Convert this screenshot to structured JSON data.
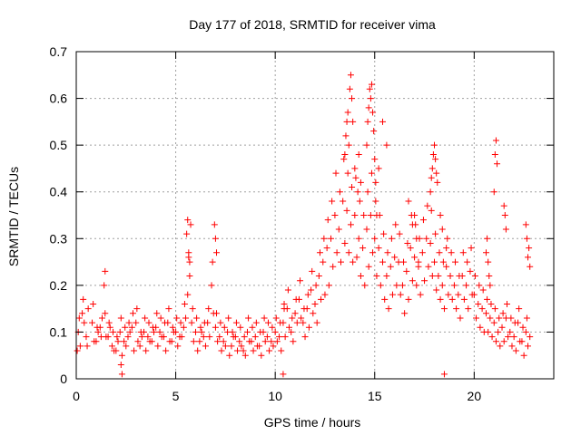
{
  "chart_data": {
    "type": "scatter",
    "title": "Day 177 of 2018, SRMTID for receiver vima",
    "xlabel": "GPS time / hours",
    "ylabel": "SRMTID / TECUs",
    "xlim": [
      0,
      24
    ],
    "ylim": [
      0,
      0.7
    ],
    "xticks": [
      0,
      5,
      10,
      15,
      20
    ],
    "xtick_labels": [
      "0",
      "5",
      "10",
      "15",
      "20"
    ],
    "yticks": [
      0,
      0.1,
      0.2,
      0.3,
      0.4,
      0.5,
      0.6,
      0.7
    ],
    "ytick_labels": [
      "0",
      "0.1",
      "0.2",
      "0.3",
      "0.4",
      "0.5",
      "0.6",
      "0.7"
    ],
    "grid": true,
    "marker": "+",
    "series": [
      {
        "name": "SRMTID",
        "color": "#ff0000",
        "x": [
          0.1,
          0.3,
          0.5,
          0.8,
          1.0,
          1.2,
          1.4,
          1.6,
          1.8,
          2.0,
          2.2,
          2.4,
          2.6,
          2.8,
          3.0,
          3.2,
          3.4,
          3.6,
          3.8,
          4.0,
          4.2,
          4.4,
          4.6,
          4.8,
          5.0,
          5.2,
          5.4,
          5.6,
          5.8,
          6.0,
          6.2,
          6.4,
          6.6,
          6.8,
          7.0,
          7.2,
          7.4,
          7.6,
          7.8,
          8.0,
          8.2,
          8.4,
          8.6,
          8.8,
          9.0,
          9.2,
          9.4,
          9.6,
          9.8,
          10.0,
          10.2,
          10.4,
          10.6,
          10.8,
          11.0,
          11.2,
          11.4,
          11.6,
          11.8,
          12.0,
          12.2,
          12.4,
          12.6,
          12.8,
          13.0,
          13.2,
          13.4,
          13.6,
          13.8,
          14.0,
          14.2,
          14.4,
          14.6,
          14.8,
          15.0,
          15.2,
          15.4,
          15.6,
          15.8,
          16.0,
          16.2,
          16.4,
          16.6,
          16.8,
          17.0,
          17.2,
          17.4,
          17.6,
          17.8,
          18.0,
          18.2,
          18.4,
          18.6,
          18.8,
          19.0,
          19.2,
          19.4,
          19.6,
          19.8,
          20.0,
          20.2,
          20.4,
          20.6,
          20.8,
          21.0,
          21.2,
          21.4,
          21.6,
          21.8,
          22.0,
          22.2,
          22.4,
          22.6,
          22.8,
          0.2,
          0.4,
          0.6,
          0.9,
          1.1,
          1.3,
          1.5,
          1.7,
          1.9,
          2.1,
          2.3,
          2.5,
          2.7,
          2.9,
          3.1,
          3.3,
          3.5,
          3.7,
          3.9,
          4.1,
          4.3,
          4.5,
          4.7,
          4.9,
          5.1,
          5.3,
          5.5,
          5.7,
          5.9,
          6.1,
          6.3,
          6.5,
          6.7,
          6.9,
          7.1,
          7.3,
          7.5,
          7.7,
          7.9,
          8.1,
          8.3,
          8.5,
          8.7,
          8.9,
          9.1,
          9.3,
          9.5,
          9.7,
          9.9,
          10.1,
          10.3,
          10.5,
          10.7,
          10.9,
          11.1,
          11.3,
          11.5,
          11.7,
          11.9,
          12.1,
          12.3,
          12.5,
          12.7,
          12.9,
          13.1,
          13.3,
          13.5,
          13.7,
          13.9,
          14.1,
          14.3,
          14.5,
          14.7,
          14.9,
          15.1,
          15.3,
          15.5,
          15.7,
          15.9,
          16.1,
          16.3,
          16.5,
          16.7,
          16.9,
          17.1,
          17.3,
          17.5,
          17.7,
          17.9,
          18.1,
          18.3,
          18.5,
          18.7,
          18.9,
          19.1,
          19.3,
          19.5,
          19.7,
          19.9,
          20.1,
          20.3,
          20.5,
          20.7,
          20.9,
          21.1,
          21.3,
          21.5,
          21.7,
          21.9,
          22.1,
          22.3,
          22.5,
          22.7,
          0.15,
          0.35,
          0.55,
          0.85,
          1.05,
          1.25,
          1.45,
          1.65,
          1.85,
          2.05,
          2.25,
          2.45,
          2.65,
          2.85,
          3.05,
          3.25,
          3.45,
          3.65,
          3.85,
          4.05,
          4.25,
          4.45,
          4.65,
          4.85,
          5.05,
          5.25,
          5.45,
          5.65,
          5.85,
          6.05,
          6.25,
          6.45,
          6.65,
          6.85,
          7.05,
          7.25,
          7.45,
          7.65,
          7.85,
          8.05,
          8.25,
          8.45,
          8.65,
          8.85,
          9.05,
          9.25,
          9.45,
          9.65,
          9.85,
          10.05,
          10.25,
          10.45,
          10.65,
          10.85,
          11.05,
          11.25,
          11.45,
          11.65,
          11.85,
          12.05,
          12.25,
          12.45,
          12.65,
          12.85,
          13.05,
          13.25,
          13.45,
          13.65,
          13.85,
          14.05,
          14.25,
          14.45,
          14.65,
          14.85,
          15.05,
          15.25,
          15.45,
          15.65,
          15.85,
          16.05,
          16.25,
          16.45,
          16.65,
          16.85,
          17.05,
          17.25,
          17.45,
          17.65,
          17.85,
          18.05,
          18.25,
          18.45,
          18.65,
          18.85,
          19.05,
          19.25,
          19.45,
          19.65,
          19.85,
          20.05,
          20.25,
          20.45,
          20.65,
          20.85,
          21.05,
          21.25,
          21.45,
          21.65,
          21.85,
          22.05,
          22.25,
          22.45,
          22.65,
          0.05,
          1.45,
          2.25,
          2.3,
          5.55,
          5.6,
          5.65,
          5.7,
          5.75,
          6.95,
          7.0,
          7.05,
          10.4,
          10.45,
          13.5,
          13.55,
          13.6,
          13.65,
          13.7,
          13.75,
          13.8,
          13.85,
          13.9,
          14.0,
          14.15,
          14.2,
          14.3,
          14.6,
          14.65,
          14.7,
          14.75,
          14.8,
          14.85,
          14.9,
          14.95,
          15.0,
          15.05,
          15.1,
          15.2,
          15.4,
          15.6,
          16.7,
          16.9,
          17.0,
          17.1,
          17.2,
          17.8,
          17.85,
          17.9,
          17.95,
          18.0,
          18.05,
          18.1,
          18.15,
          18.3,
          18.4,
          18.5,
          18.6,
          20.6,
          20.65,
          20.7,
          20.75,
          20.8,
          21.0,
          21.05,
          21.1,
          21.15,
          21.5,
          21.55,
          21.6,
          22.6,
          22.65,
          22.7,
          22.75,
          22.8
        ],
        "y": [
          0.1,
          0.14,
          0.09,
          0.12,
          0.08,
          0.11,
          0.2,
          0.09,
          0.07,
          0.06,
          0.1,
          0.08,
          0.09,
          0.11,
          0.12,
          0.07,
          0.1,
          0.09,
          0.08,
          0.11,
          0.1,
          0.09,
          0.12,
          0.08,
          0.1,
          0.09,
          0.11,
          0.18,
          0.12,
          0.1,
          0.08,
          0.09,
          0.12,
          0.2,
          0.11,
          0.09,
          0.08,
          0.1,
          0.07,
          0.09,
          0.08,
          0.06,
          0.1,
          0.08,
          0.09,
          0.07,
          0.1,
          0.09,
          0.08,
          0.1,
          0.09,
          0.12,
          0.15,
          0.1,
          0.14,
          0.17,
          0.12,
          0.15,
          0.19,
          0.16,
          0.22,
          0.25,
          0.28,
          0.3,
          0.35,
          0.32,
          0.38,
          0.36,
          0.33,
          0.35,
          0.3,
          0.28,
          0.32,
          0.35,
          0.3,
          0.28,
          0.25,
          0.22,
          0.24,
          0.26,
          0.25,
          0.2,
          0.23,
          0.28,
          0.26,
          0.24,
          0.27,
          0.3,
          0.29,
          0.25,
          0.22,
          0.2,
          0.24,
          0.22,
          0.2,
          0.18,
          0.22,
          0.2,
          0.23,
          0.18,
          0.16,
          0.15,
          0.14,
          0.13,
          0.12,
          0.1,
          0.11,
          0.13,
          0.1,
          0.09,
          0.12,
          0.08,
          0.1,
          0.09,
          0.07,
          0.12,
          0.15,
          0.08,
          0.1,
          0.13,
          0.09,
          0.11,
          0.06,
          0.08,
          0.05,
          0.07,
          0.1,
          0.06,
          0.08,
          0.09,
          0.06,
          0.08,
          0.1,
          0.07,
          0.09,
          0.06,
          0.08,
          0.1,
          0.07,
          0.09,
          0.13,
          0.22,
          0.08,
          0.06,
          0.1,
          0.07,
          0.09,
          0.14,
          0.08,
          0.06,
          0.07,
          0.05,
          0.09,
          0.06,
          0.07,
          0.05,
          0.08,
          0.06,
          0.07,
          0.05,
          0.08,
          0.06,
          0.07,
          0.08,
          0.06,
          0.09,
          0.11,
          0.08,
          0.12,
          0.13,
          0.09,
          0.11,
          0.14,
          0.12,
          0.17,
          0.18,
          0.2,
          0.24,
          0.27,
          0.25,
          0.29,
          0.27,
          0.25,
          0.26,
          0.22,
          0.2,
          0.24,
          0.27,
          0.22,
          0.2,
          0.17,
          0.15,
          0.18,
          0.2,
          0.18,
          0.14,
          0.17,
          0.21,
          0.2,
          0.18,
          0.21,
          0.24,
          0.22,
          0.19,
          0.17,
          0.15,
          0.18,
          0.17,
          0.15,
          0.13,
          0.17,
          0.15,
          0.18,
          0.13,
          0.11,
          0.1,
          0.1,
          0.09,
          0.08,
          0.07,
          0.08,
          0.09,
          0.07,
          0.06,
          0.08,
          0.05,
          0.07,
          0.13,
          0.17,
          0.07,
          0.16,
          0.11,
          0.09,
          0.14,
          0.12,
          0.1,
          0.09,
          0.13,
          0.11,
          0.12,
          0.14,
          0.15,
          0.1,
          0.13,
          0.12,
          0.11,
          0.14,
          0.13,
          0.12,
          0.15,
          0.11,
          0.13,
          0.12,
          0.16,
          0.26,
          0.15,
          0.13,
          0.11,
          0.12,
          0.15,
          0.25,
          0.14,
          0.12,
          0.11,
          0.13,
          0.1,
          0.12,
          0.11,
          0.09,
          0.13,
          0.11,
          0.12,
          0.1,
          0.13,
          0.12,
          0.11,
          0.13,
          0.12,
          0.15,
          0.19,
          0.13,
          0.17,
          0.21,
          0.15,
          0.18,
          0.23,
          0.2,
          0.27,
          0.3,
          0.34,
          0.38,
          0.44,
          0.4,
          0.47,
          0.44,
          0.41,
          0.43,
          0.38,
          0.35,
          0.4,
          0.44,
          0.38,
          0.35,
          0.31,
          0.27,
          0.3,
          0.33,
          0.31,
          0.25,
          0.29,
          0.35,
          0.33,
          0.3,
          0.34,
          0.37,
          0.36,
          0.31,
          0.27,
          0.25,
          0.3,
          0.27,
          0.25,
          0.22,
          0.27,
          0.25,
          0.28,
          0.22,
          0.2,
          0.19,
          0.17,
          0.16,
          0.15,
          0.13,
          0.14,
          0.16,
          0.13,
          0.12,
          0.15,
          0.11,
          0.13,
          0.06,
          0.23,
          0.03,
          0.01,
          0.31,
          0.34,
          0.27,
          0.25,
          0.33,
          0.33,
          0.3,
          0.27,
          0.01,
          0.16,
          0.48,
          0.52,
          0.55,
          0.57,
          0.5,
          0.62,
          0.65,
          0.6,
          0.55,
          0.45,
          0.4,
          0.48,
          0.42,
          0.5,
          0.55,
          0.58,
          0.62,
          0.6,
          0.63,
          0.57,
          0.53,
          0.47,
          0.42,
          0.35,
          0.45,
          0.55,
          0.5,
          0.38,
          0.33,
          0.35,
          0.3,
          0.25,
          0.4,
          0.43,
          0.45,
          0.48,
          0.5,
          0.47,
          0.44,
          0.42,
          0.35,
          0.32,
          0.01,
          0.28,
          0.27,
          0.3,
          0.25,
          0.22,
          0.2,
          0.4,
          0.48,
          0.51,
          0.46,
          0.37,
          0.35,
          0.32,
          0.33,
          0.3,
          0.26,
          0.28,
          0.24
        ]
      }
    ]
  }
}
